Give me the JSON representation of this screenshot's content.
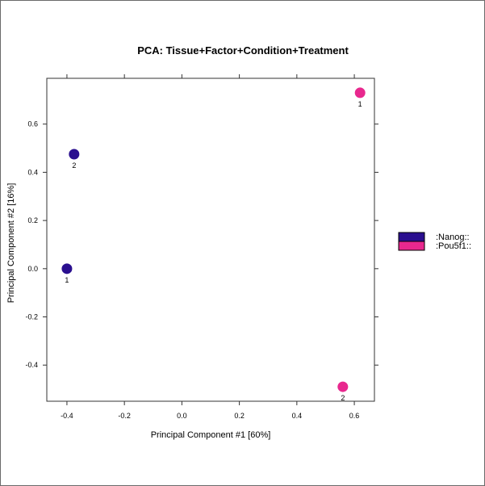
{
  "chart_data": {
    "type": "scatter",
    "title": "PCA: Tissue+Factor+Condition+Treatment",
    "xlabel": "Principal Component #1 [60%]",
    "ylabel": "Principal Component #2 [16%]",
    "xlim": [
      -0.47,
      0.67
    ],
    "ylim": [
      -0.55,
      0.79
    ],
    "xticks": [
      -0.4,
      -0.2,
      0.0,
      0.2,
      0.4,
      0.6
    ],
    "xtick_labels": [
      "-0.4",
      "-0.2",
      "0.0",
      "0.2",
      "0.4",
      "0.6"
    ],
    "yticks": [
      -0.4,
      -0.2,
      0.0,
      0.2,
      0.4,
      0.6
    ],
    "ytick_labels": [
      "-0.4",
      "-0.2",
      "0.0",
      "0.2",
      "0.4",
      "0.6"
    ],
    "grid": false,
    "legend_position": "right",
    "series": [
      {
        "name": ":Nanog::",
        "color": "#2a0f8f",
        "points": [
          {
            "x": -0.4,
            "y": 0.0,
            "label": "1"
          },
          {
            "x": -0.375,
            "y": 0.475,
            "label": "2"
          }
        ]
      },
      {
        "name": ":Pou5f1::",
        "color": "#e8288e",
        "points": [
          {
            "x": 0.62,
            "y": 0.73,
            "label": "1"
          },
          {
            "x": 0.56,
            "y": -0.49,
            "label": "2"
          }
        ]
      }
    ]
  }
}
